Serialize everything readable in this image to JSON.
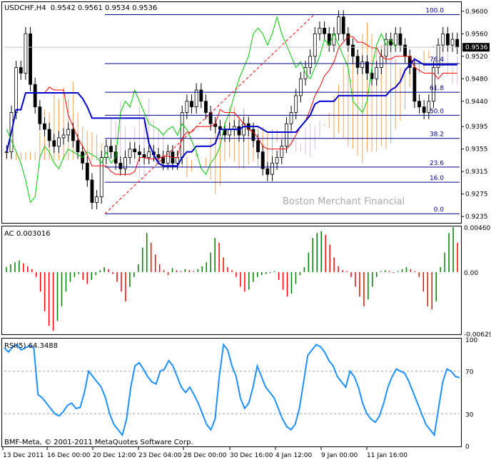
{
  "header": {
    "symbol_tf": "USDCHF,H4",
    "ohlc": "0.9542 0.9561 0.9534 0.9536"
  },
  "watermark": "Boston Merchant Financial",
  "footer": {
    "copyright": "BMF-Meta, © 2001-2011 MetaQuotes Software Corp."
  },
  "colors": {
    "background": "#ffffff",
    "frame": "#000000",
    "fib": "#00008b",
    "tenkan": "#ff0000",
    "kijun": "#0000cd",
    "chikou": "#00cc00",
    "kumo_bull": "#f4a460",
    "kumo_bear": "#d8bfd8",
    "ac_up": "#008000",
    "ac_down": "#ff0000",
    "rsi": "#1e90ff",
    "watermark": "#a9a9a9"
  },
  "chart_data": [
    {
      "type": "candlestick",
      "panel": "price",
      "title": "USDCHF,H4",
      "ylim": [
        0.9225,
        0.9615
      ],
      "price_ticks": [
        "0.9600",
        "0.9560",
        "0.9520",
        "0.9480",
        "0.9440",
        "0.9395",
        "0.9355",
        "0.9315",
        "0.9275",
        "0.9235"
      ],
      "tick_values": [
        0.96,
        0.956,
        0.952,
        0.948,
        0.944,
        0.9395,
        0.9355,
        0.9315,
        0.9275,
        0.9235
      ],
      "current_price": "0.9536",
      "fib_levels": [
        {
          "label": "100.0",
          "value": 0.9594
        },
        {
          "label": "76.4",
          "value": 0.9507
        },
        {
          "label": "61.8",
          "value": 0.9456
        },
        {
          "label": "50.0",
          "value": 0.9415
        },
        {
          "label": "38.2",
          "value": 0.9374
        },
        {
          "label": "23.6",
          "value": 0.9323
        },
        {
          "label": "16.0",
          "value": 0.9296
        },
        {
          "label": "0.0",
          "value": 0.924
        }
      ],
      "close_series": [
        0.935,
        0.942,
        0.95,
        0.949,
        0.956,
        0.947,
        0.943,
        0.94,
        0.939,
        0.937,
        0.936,
        0.9375,
        0.938,
        0.939,
        0.937,
        0.935,
        0.933,
        0.93,
        0.926,
        0.927,
        0.934,
        0.936,
        0.935,
        0.933,
        0.932,
        0.934,
        0.9355,
        0.935,
        0.9345,
        0.934,
        0.935,
        0.9345,
        0.934,
        0.933,
        0.935,
        0.933,
        0.934,
        0.942,
        0.944,
        0.943,
        0.946,
        0.944,
        0.942,
        0.94,
        0.9395,
        0.939,
        0.938,
        0.939,
        0.9395,
        0.938,
        0.94,
        0.939,
        0.937,
        0.935,
        0.932,
        0.931,
        0.933,
        0.934,
        0.936,
        0.94,
        0.942,
        0.945,
        0.948,
        0.95,
        0.952,
        0.956,
        0.957,
        0.956,
        0.954,
        0.956,
        0.959,
        0.956,
        0.954,
        0.952,
        0.95,
        0.951,
        0.949,
        0.948,
        0.95,
        0.952,
        0.955,
        0.954,
        0.956,
        0.954,
        0.952,
        0.95,
        0.944,
        0.943,
        0.942,
        0.944,
        0.95,
        0.954,
        0.956,
        0.954,
        0.955,
        0.9536
      ]
    },
    {
      "type": "bar",
      "panel": "indicator",
      "title": "AC 0.003016",
      "ylim": [
        -0.00629,
        0.0046
      ],
      "tick_labels": [
        "0.004600",
        "0.00",
        "-0.006290"
      ],
      "tick_values": [
        0.0046,
        0.0,
        -0.00629
      ],
      "values": [
        0.0005,
        0.0008,
        0.001,
        0.0012,
        0.0009,
        0.0006,
        0.0003,
        -0.0005,
        -0.002,
        -0.004,
        -0.0055,
        -0.006,
        -0.005,
        -0.0035,
        -0.002,
        -0.001,
        -0.0005,
        -0.0002,
        -0.0008,
        -0.0012,
        -0.0008,
        -0.0003,
        0.0002,
        0.0005,
        0.0003,
        -0.0002,
        -0.001,
        -0.002,
        -0.003,
        -0.0015,
        -0.0005,
        0.0008,
        0.0025,
        0.004,
        0.003,
        0.0018,
        0.0008,
        0.0002,
        -0.0003,
        0.0004,
        0.0002,
        0.0001,
        0.0003,
        0.0002,
        0.0001,
        0.0003,
        0.0006,
        0.001,
        0.002,
        0.0035,
        0.003,
        0.0015,
        0.0005,
        0.0002,
        -0.0005,
        -0.0015,
        -0.002,
        -0.0018,
        -0.001,
        -0.0005,
        -0.0003,
        -0.0002,
        -0.0001,
        0.0001,
        -0.0008,
        -0.0018,
        -0.0025,
        -0.0022,
        -0.0012,
        -0.0003,
        0.0005,
        0.002,
        0.0035,
        0.004,
        0.0042,
        0.0038,
        0.0028,
        0.0015,
        0.0006,
        0.0002,
        0.0001,
        -0.0005,
        -0.0015,
        -0.0025,
        -0.0035,
        -0.0028,
        -0.0015,
        -0.0005,
        0.0001,
        0.0002,
        0.0001,
        -0.0001,
        0.0001,
        0.0003,
        0.0005,
        0.0003,
        0.0001,
        -0.0005,
        -0.002,
        -0.0035,
        -0.0038,
        -0.003,
        0.0005,
        0.002,
        0.004,
        0.0046,
        0.003
      ]
    },
    {
      "type": "line",
      "panel": "indicator",
      "title": "RSI(5) 64.3488",
      "ylim": [
        0,
        100
      ],
      "tick_labels": [
        "100",
        "70",
        "30",
        "0"
      ],
      "tick_values": [
        100,
        70,
        30,
        0
      ],
      "x_labels": [
        "13 Dec 2011",
        "16 Dec 00:00",
        "20 Dec 12:00",
        "23 Dec 04:00",
        "28 Dec 00:00",
        "30 Dec 16:00",
        "4 Jan 12:00",
        "9 Jan 00:00",
        "11 Jan 16:00"
      ],
      "values": [
        92,
        88,
        93,
        95,
        90,
        92,
        94,
        92,
        48,
        45,
        40,
        35,
        30,
        28,
        32,
        38,
        40,
        35,
        36,
        50,
        70,
        65,
        60,
        55,
        45,
        30,
        20,
        15,
        10,
        25,
        55,
        75,
        78,
        72,
        65,
        60,
        58,
        70,
        72,
        80,
        75,
        65,
        55,
        50,
        55,
        48,
        40,
        30,
        20,
        15,
        25,
        65,
        95,
        90,
        75,
        65,
        45,
        35,
        40,
        55,
        75,
        65,
        55,
        50,
        45,
        35,
        25,
        18,
        15,
        20,
        35,
        60,
        85,
        90,
        95,
        93,
        88,
        80,
        75,
        65,
        60,
        55,
        70,
        65,
        55,
        40,
        30,
        25,
        22,
        28,
        40,
        55,
        65,
        72,
        70,
        68,
        60,
        50,
        40,
        30,
        20,
        15,
        10,
        35,
        60,
        72,
        70,
        65,
        64
      ]
    }
  ]
}
